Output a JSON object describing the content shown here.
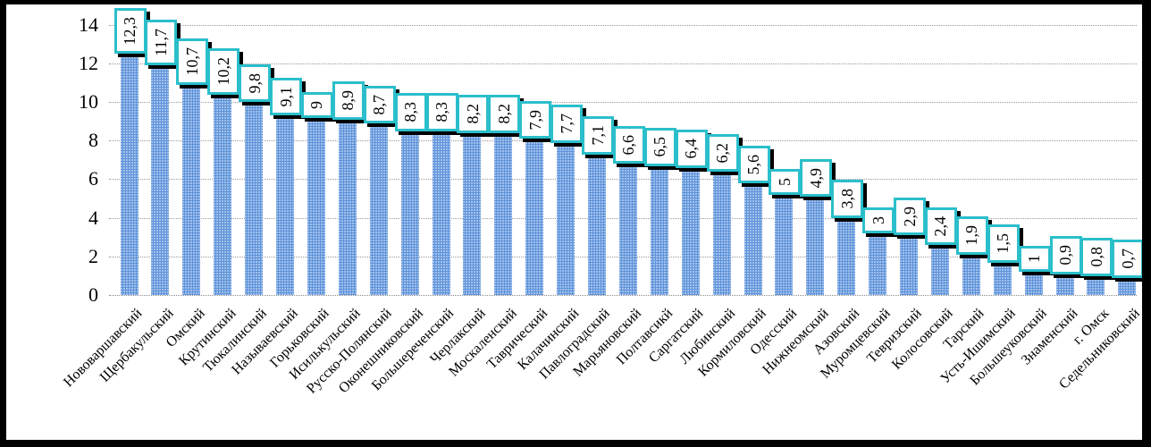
{
  "chart_data": {
    "type": "bar",
    "title": "",
    "xlabel": "",
    "ylabel": "",
    "categories": [
      "Нововаршавский",
      "Щербакульский",
      "Омский",
      "Крутинский",
      "Тюкалинский",
      "Называевский",
      "Горьковский",
      "Исилькульский",
      "Русско-Полянский",
      "Оконешниковский",
      "Большереченский",
      "Черлакский",
      "Москаленский",
      "Таврический",
      "Калачинский",
      "Павлоградский",
      "Марьяновский",
      "Полтавсикй",
      "Саргатский",
      "Любинский",
      "Кормиловский",
      "Одесский",
      "Нижнеомский",
      "Азовский",
      "Муромцевский",
      "Тевризский",
      "Колосовский",
      "Тарский",
      "Усть-Ишимский",
      "Большеуковский",
      "Знаменский",
      "г. Омск",
      "Седельниковский"
    ],
    "values": [
      12.3,
      11.7,
      10.7,
      10.2,
      9.8,
      9.1,
      9,
      8.9,
      8.7,
      8.3,
      8.3,
      8.2,
      8.2,
      7.9,
      7.7,
      7.1,
      6.6,
      6.5,
      6.4,
      6.2,
      5.6,
      5,
      4.9,
      3.8,
      3,
      2.9,
      2.4,
      1.9,
      1.5,
      1,
      0.9,
      0.8,
      0.7
    ],
    "value_labels": [
      "12,3",
      "11,7",
      "10,7",
      "10,2",
      "9,8",
      "9,1",
      "9",
      "8,9",
      "8,7",
      "8,3",
      "8,3",
      "8,2",
      "8,2",
      "7,9",
      "7,7",
      "7,1",
      "6,6",
      "6,5",
      "6,4",
      "6,2",
      "5,6",
      "5",
      "4,9",
      "3,8",
      "3",
      "2,9",
      "2,4",
      "1,9",
      "1,5",
      "1",
      "0,9",
      "0,8",
      "0,7"
    ],
    "yticks": [
      0,
      2,
      4,
      6,
      8,
      10,
      12,
      14
    ],
    "ylim": [
      0,
      14
    ],
    "grid": true,
    "legend": false,
    "data_labels": true,
    "colors": {
      "bar": "#5d93d9",
      "bar_dot": "#b9cff2",
      "label_box_border": "#2bbecb",
      "label_box_shadow": "#000000",
      "gridline": "#9a9a9a",
      "frame": "#000000",
      "text": "#000000"
    }
  }
}
